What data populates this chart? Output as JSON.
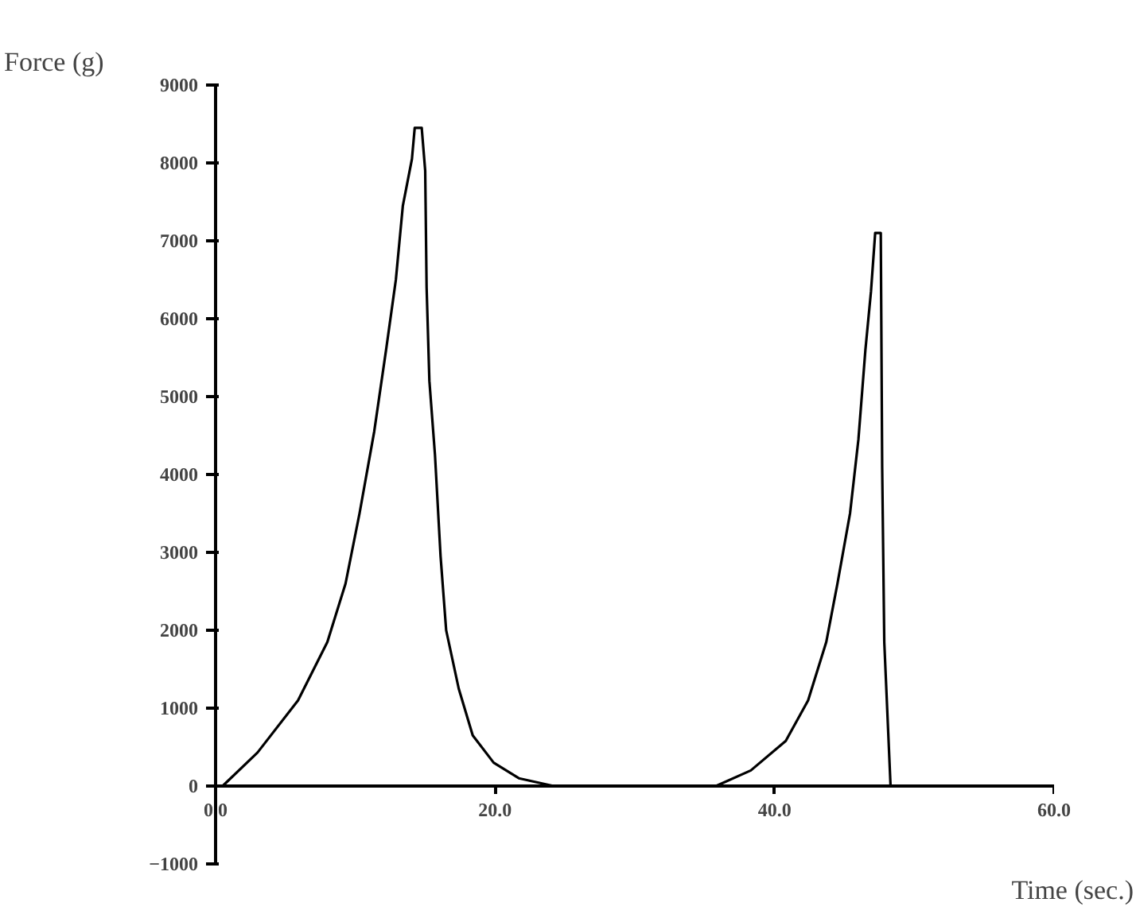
{
  "chart_data": {
    "type": "line",
    "xlabel": "Time (sec.)",
    "ylabel": "Force   (g)",
    "xlim": [
      0,
      60
    ],
    "ylim": [
      -1000,
      9000
    ],
    "xticks": [
      {
        "value": 0,
        "label": "0.0"
      },
      {
        "value": 20,
        "label": "20.0"
      },
      {
        "value": 40,
        "label": "40.0"
      },
      {
        "value": 60,
        "label": "60.0"
      }
    ],
    "yticks": [
      -1000,
      0,
      1000,
      2000,
      3000,
      4000,
      5000,
      6000,
      7000,
      8000,
      9000
    ],
    "grid": false,
    "marker": "none",
    "line_style": "solid",
    "series": [
      {
        "color": "#000000",
        "x": [
          0.5,
          3.0,
          5.9,
          8.0,
          9.3,
          10.3,
          11.35,
          12.2,
          12.9,
          13.4,
          14.05,
          14.25,
          14.75,
          15.0,
          15.1,
          15.3,
          15.7,
          16.1,
          16.5,
          17.4,
          18.4,
          19.9,
          21.7,
          24.2,
          35.8,
          38.3,
          40.8,
          42.4,
          43.7,
          44.5,
          45.4,
          46.0,
          46.5,
          46.9,
          47.2,
          47.6,
          47.7,
          47.85,
          48.3
        ],
        "values": [
          0,
          430,
          1100,
          1850,
          2600,
          3500,
          4550,
          5600,
          6500,
          7450,
          8050,
          8450,
          8450,
          7900,
          6400,
          5200,
          4250,
          2950,
          2000,
          1250,
          650,
          300,
          100,
          0,
          0,
          200,
          580,
          1100,
          1850,
          2600,
          3500,
          4450,
          5600,
          6350,
          7100,
          7100,
          4100,
          1850,
          0
        ]
      }
    ]
  }
}
